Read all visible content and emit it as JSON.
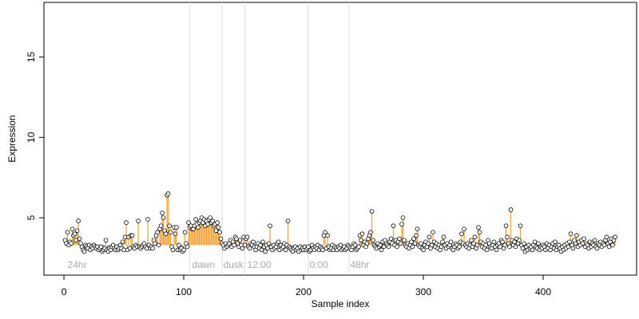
{
  "chart_data": {
    "type": "stem-scatter",
    "xlabel": "Sample index",
    "ylabel": "Expression",
    "xlim": [
      -16.7,
      478
    ],
    "ylim": [
      1.43,
      18.4
    ],
    "xticks": [
      0,
      100,
      200,
      300,
      400
    ],
    "yticks": [
      5,
      10,
      15
    ],
    "baseline": 3.3,
    "point_color": "#ffffff",
    "stem_up_color": "#f0a030",
    "stem_down_color": "#8fa8d8",
    "vlines": [
      105,
      132,
      151,
      204,
      238
    ],
    "annotations": [
      {
        "x": 3,
        "label": "24hr"
      },
      {
        "x": 107,
        "label": "dawn"
      },
      {
        "x": 133,
        "label": "dusk"
      },
      {
        "x": 153,
        "label": "12:00"
      },
      {
        "x": 205,
        "label": "0:00"
      },
      {
        "x": 239,
        "label": "48hr"
      }
    ],
    "x": [
      1,
      2,
      3,
      4,
      5,
      6,
      7,
      8,
      9,
      10,
      11,
      12,
      13,
      14,
      15,
      16,
      17,
      18,
      19,
      20,
      21,
      22,
      23,
      24,
      25,
      26,
      27,
      28,
      29,
      30,
      31,
      32,
      33,
      34,
      35,
      36,
      37,
      38,
      39,
      40,
      41,
      42,
      43,
      44,
      45,
      46,
      47,
      48,
      49,
      50,
      51,
      52,
      53,
      54,
      55,
      56,
      57,
      58,
      59,
      60,
      61,
      62,
      63,
      64,
      65,
      66,
      67,
      68,
      69,
      70,
      71,
      72,
      73,
      74,
      75,
      76,
      77,
      78,
      79,
      80,
      81,
      82,
      83,
      84,
      85,
      86,
      87,
      88,
      89,
      90,
      91,
      92,
      93,
      94,
      95,
      96,
      97,
      98,
      99,
      100,
      101,
      102,
      103,
      104,
      105,
      106,
      107,
      108,
      109,
      110,
      111,
      112,
      113,
      114,
      115,
      116,
      117,
      118,
      119,
      120,
      121,
      122,
      123,
      124,
      125,
      126,
      127,
      128,
      129,
      130,
      131,
      132,
      133,
      134,
      135,
      136,
      137,
      138,
      139,
      140,
      141,
      142,
      143,
      144,
      145,
      146,
      147,
      148,
      149,
      150,
      151,
      152,
      153,
      154,
      155,
      156,
      157,
      158,
      159,
      160,
      161,
      162,
      163,
      164,
      165,
      166,
      167,
      168,
      169,
      170,
      171,
      172,
      173,
      174,
      175,
      176,
      177,
      178,
      179,
      180,
      181,
      182,
      183,
      184,
      185,
      186,
      187,
      188,
      189,
      190,
      191,
      192,
      193,
      194,
      195,
      196,
      197,
      198,
      199,
      200,
      201,
      202,
      203,
      204,
      205,
      206,
      207,
      208,
      209,
      210,
      211,
      212,
      213,
      214,
      215,
      216,
      217,
      218,
      219,
      220,
      221,
      222,
      223,
      224,
      225,
      226,
      227,
      228,
      229,
      230,
      231,
      232,
      233,
      234,
      235,
      236,
      237,
      238,
      239,
      240,
      241,
      242,
      243,
      244,
      245,
      246,
      247,
      248,
      249,
      250,
      251,
      252,
      253,
      254,
      255,
      256,
      257,
      258,
      259,
      260,
      261,
      262,
      263,
      264,
      265,
      266,
      267,
      268,
      269,
      270,
      271,
      272,
      273,
      274,
      275,
      276,
      277,
      278,
      279,
      280,
      281,
      282,
      283,
      284,
      285,
      286,
      287,
      288,
      289,
      290,
      291,
      292,
      293,
      294,
      295,
      296,
      297,
      298,
      299,
      300,
      301,
      302,
      303,
      304,
      305,
      306,
      307,
      308,
      309,
      310,
      311,
      312,
      313,
      314,
      315,
      316,
      317,
      318,
      319,
      320,
      321,
      322,
      323,
      324,
      325,
      326,
      327,
      328,
      329,
      330,
      331,
      332,
      333,
      334,
      335,
      336,
      337,
      338,
      339,
      340,
      341,
      342,
      343,
      344,
      345,
      346,
      347,
      348,
      349,
      350,
      351,
      352,
      353,
      354,
      355,
      356,
      357,
      358,
      359,
      360,
      361,
      362,
      363,
      364,
      365,
      366,
      367,
      368,
      369,
      370,
      371,
      372,
      373,
      374,
      375,
      376,
      377,
      378,
      379,
      380,
      381,
      382,
      383,
      384,
      385,
      386,
      387,
      388,
      389,
      390,
      391,
      392,
      393,
      394,
      395,
      396,
      397,
      398,
      399,
      400,
      401,
      402,
      403,
      404,
      405,
      406,
      407,
      408,
      409,
      410,
      411,
      412,
      413,
      414,
      415,
      416,
      417,
      418,
      419,
      420,
      421,
      422,
      423,
      424,
      425,
      426,
      427,
      428,
      429,
      430,
      431,
      432,
      433,
      434,
      435,
      436,
      437,
      438,
      439,
      440,
      441,
      442,
      443,
      444,
      445,
      446,
      447,
      448,
      449,
      450,
      451,
      452,
      453,
      454,
      455,
      456,
      457,
      458,
      459,
      460
    ],
    "values": [
      3.6,
      3.4,
      4.1,
      3.3,
      3.5,
      3.4,
      4.3,
      3.9,
      4.0,
      3.6,
      4.2,
      4.8,
      3.7,
      3.4,
      3.2,
      3.0,
      2.9,
      3.3,
      3.2,
      3.1,
      3.3,
      3.0,
      3.2,
      3.1,
      3.3,
      3.2,
      3.1,
      3.2,
      3.0,
      3.1,
      3.2,
      2.9,
      3.0,
      3.1,
      3.6,
      3.0,
      2.9,
      3.1,
      3.0,
      3.2,
      3.3,
      3.1,
      3.0,
      3.2,
      3.0,
      3.1,
      3.3,
      3.1,
      3.5,
      3.0,
      3.8,
      4.7,
      3.0,
      3.8,
      3.1,
      3.9,
      3.9,
      3.2,
      3.1,
      3.3,
      3.2,
      4.8,
      3.2,
      3.1,
      3.2,
      3.3,
      3.4,
      3.2,
      3.1,
      4.9,
      3.3,
      3.1,
      3.2,
      3.1,
      3.6,
      3.4,
      3.9,
      4.1,
      3.3,
      4.3,
      4.5,
      5.3,
      5.0,
      4.2,
      4.0,
      6.4,
      6.5,
      4.5,
      4.1,
      3.2,
      3.0,
      4.4,
      4.0,
      4.4,
      3.0,
      3.3,
      3.0,
      3.1,
      2.9,
      3.0,
      4.1,
      3.4,
      3.2,
      4.7,
      4.4,
      4.5,
      4.3,
      4.3,
      4.5,
      4.9,
      4.6,
      4.4,
      4.7,
      4.8,
      5.0,
      4.7,
      4.9,
      4.5,
      4.8,
      4.6,
      4.9,
      5.0,
      4.7,
      4.8,
      4.5,
      4.6,
      4.2,
      4.7,
      4.4,
      4.1,
      3.7,
      3.4,
      3.3,
      3.1,
      3.4,
      3.2,
      3.3,
      3.4,
      3.6,
      3.2,
      3.5,
      3.3,
      3.8,
      3.7,
      3.4,
      3.2,
      3.6,
      3.3,
      3.1,
      3.8,
      3.3,
      3.7,
      3.8,
      3.2,
      3.1,
      3.4,
      3.3,
      3.5,
      3.2,
      3.0,
      3.2,
      3.4,
      3.1,
      3.3,
      3.0,
      3.5,
      3.2,
      2.9,
      3.3,
      3.1,
      3.4,
      4.5,
      3.2,
      3.0,
      3.3,
      3.1,
      3.2,
      3.4,
      3.5,
      3.0,
      3.3,
      3.1,
      3.2,
      3.4,
      3.0,
      3.3,
      4.8,
      3.2,
      3.1,
      3.0,
      2.9,
      3.1,
      3.2,
      3.0,
      3.1,
      2.9,
      3.2,
      3.0,
      3.1,
      3.0,
      3.2,
      3.0,
      3.1,
      3.2,
      2.9,
      3.0,
      3.3,
      3.1,
      3.0,
      3.2,
      3.1,
      3.3,
      3.0,
      3.2,
      3.1,
      3.0,
      3.9,
      4.1,
      3.1,
      3.9,
      3.2,
      3.0,
      3.1,
      3.3,
      3.0,
      3.2,
      3.1,
      3.0,
      3.2,
      3.1,
      3.3,
      3.0,
      3.1,
      3.2,
      3.0,
      3.1,
      3.3,
      3.2,
      3.1,
      3.0,
      3.2,
      3.4,
      3.3,
      3.0,
      3.1,
      3.2,
      3.9,
      3.6,
      4.0,
      3.3,
      3.5,
      3.2,
      3.4,
      3.7,
      3.9,
      4.1,
      5.4,
      3.6,
      3.3,
      3.2,
      3.1,
      3.4,
      3.2,
      3.3,
      3.0,
      3.5,
      3.2,
      3.6,
      3.4,
      3.3,
      3.2,
      3.5,
      3.7,
      3.4,
      4.5,
      3.3,
      3.6,
      3.2,
      3.5,
      3.7,
      3.4,
      4.6,
      5.0,
      3.6,
      3.3,
      3.2,
      3.4,
      3.1,
      3.3,
      3.5,
      3.2,
      3.7,
      3.4,
      3.9,
      4.3,
      3.3,
      3.2,
      3.4,
      3.1,
      3.0,
      3.3,
      3.5,
      3.2,
      3.4,
      3.8,
      3.1,
      3.3,
      4.1,
      3.5,
      3.2,
      3.4,
      3.1,
      3.3,
      3.0,
      3.2,
      3.5,
      3.8,
      3.3,
      3.1,
      3.4,
      3.2,
      3.3,
      3.5,
      3.1,
      3.0,
      3.2,
      3.4,
      3.3,
      3.1,
      3.2,
      3.5,
      4.0,
      3.4,
      4.3,
      3.3,
      3.2,
      3.4,
      3.1,
      3.3,
      3.6,
      3.2,
      3.4,
      3.8,
      3.1,
      3.3,
      4.4,
      4.1,
      3.5,
      3.2,
      3.4,
      3.1,
      3.3,
      3.0,
      3.6,
      3.4,
      3.2,
      3.1,
      3.3,
      3.5,
      3.2,
      3.0,
      3.3,
      3.4,
      3.2,
      3.6,
      3.5,
      3.1,
      3.3,
      4.5,
      3.8,
      3.4,
      3.2,
      5.5,
      3.6,
      3.3,
      3.5,
      3.2,
      3.7,
      3.4,
      3.6,
      4.5,
      3.3,
      3.1,
      3.4,
      2.9,
      3.2,
      3.0,
      3.3,
      3.1,
      3.2,
      3.0,
      3.3,
      3.5,
      3.2,
      3.1,
      3.4,
      3.0,
      3.2,
      3.1,
      3.3,
      3.2,
      3.0,
      3.4,
      3.1,
      3.3,
      3.0,
      3.2,
      3.4,
      3.1,
      3.5,
      3.0,
      3.2,
      3.3,
      3.1,
      2.9,
      3.2,
      3.0,
      3.3,
      3.1,
      3.4,
      3.2,
      3.5,
      4.0,
      3.3,
      3.1,
      3.6,
      3.4,
      3.9,
      3.2,
      3.5,
      3.3,
      3.6,
      3.4,
      3.7,
      3.2,
      3.4,
      3.3,
      3.1,
      3.5,
      3.2,
      3.4,
      3.3,
      3.6,
      3.2,
      3.1,
      3.4,
      3.3,
      3.5,
      3.2,
      3.4,
      3.3,
      3.6,
      3.8,
      3.4,
      3.2,
      3.5,
      3.7,
      3.3,
      3.6,
      3.8
    ]
  }
}
